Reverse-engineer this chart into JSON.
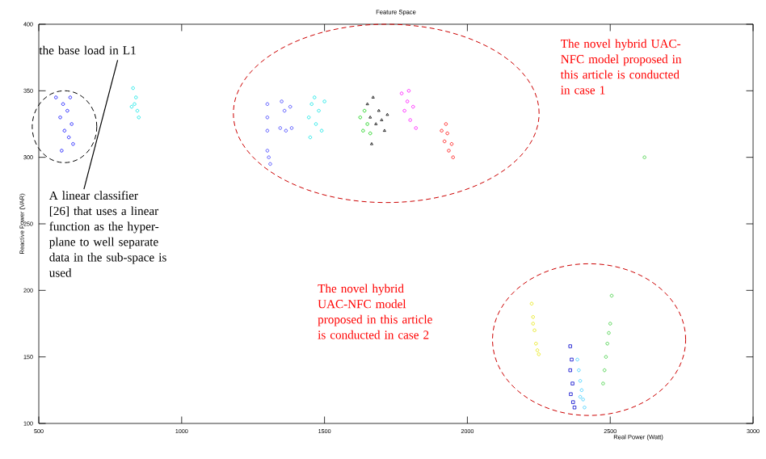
{
  "chart_data": {
    "type": "scatter",
    "title": "Feature Space",
    "xlabel": "Real Power (Watt)",
    "ylabel": "Reactive Power (VAR)",
    "xlim": [
      500,
      3000
    ],
    "ylim": [
      100,
      400
    ],
    "xticks": [
      500,
      1000,
      1500,
      2000,
      2500,
      3000
    ],
    "yticks": [
      100,
      150,
      200,
      250,
      300,
      350,
      400
    ],
    "annotations": [
      "the base load in L1",
      "A linear classifier [26] that uses a linear function as the hyper-plane to well separate data in the sub-space is used",
      "The novel hybrid UAC-NFC model proposed in this article is conducted in case 1",
      "The novel hybrid UAC-NFC model proposed in this article is conducted in case 2"
    ],
    "series": [
      {
        "color": "#0000ff",
        "marker": "circle",
        "x": [
          560,
          575,
          585,
          590,
          600,
          605,
          615,
          620,
          580,
          610
        ],
        "values": [
          345,
          330,
          340,
          320,
          335,
          315,
          325,
          310,
          305,
          345
        ]
      },
      {
        "color": "#00e5e5",
        "marker": "circle",
        "x": [
          830,
          835,
          840,
          845,
          850,
          825
        ],
        "values": [
          352,
          340,
          345,
          335,
          330,
          338
        ]
      },
      {
        "color": "#3333ff",
        "marker": "circle",
        "x": [
          1300,
          1300,
          1300,
          1305,
          1300,
          1310,
          1350,
          1360,
          1380,
          1345,
          1365,
          1385
        ],
        "values": [
          340,
          330,
          320,
          300,
          305,
          295,
          342,
          335,
          338,
          322,
          320,
          322
        ]
      },
      {
        "color": "#00e5e5",
        "marker": "circle",
        "x": [
          1445,
          1455,
          1465,
          1470,
          1480,
          1450,
          1490,
          1500
        ],
        "values": [
          330,
          340,
          345,
          325,
          335,
          315,
          320,
          342
        ]
      },
      {
        "color": "#00cc00",
        "marker": "circle",
        "x": [
          1625,
          1635,
          1640,
          1650,
          1660
        ],
        "values": [
          330,
          320,
          335,
          325,
          318
        ]
      },
      {
        "color": "#000000",
        "marker": "triangle",
        "x": [
          1650,
          1660,
          1670,
          1680,
          1690,
          1700,
          1720,
          1665,
          1710
        ],
        "values": [
          340,
          330,
          345,
          325,
          335,
          328,
          332,
          310,
          320
        ]
      },
      {
        "color": "#ff00ff",
        "marker": "circle",
        "x": [
          1770,
          1780,
          1790,
          1800,
          1810,
          1795,
          1820
        ],
        "values": [
          348,
          335,
          342,
          328,
          338,
          350,
          322
        ]
      },
      {
        "color": "#ff0000",
        "marker": "circle",
        "x": [
          1910,
          1920,
          1930,
          1935,
          1945,
          1950,
          1925
        ],
        "values": [
          320,
          312,
          318,
          305,
          310,
          300,
          325
        ]
      },
      {
        "color": "#e5e500",
        "marker": "circle",
        "x": [
          2225,
          2230,
          2235,
          2240,
          2245,
          2230,
          2250
        ],
        "values": [
          190,
          180,
          170,
          160,
          155,
          175,
          152
        ]
      },
      {
        "color": "#0000cc",
        "marker": "square",
        "x": [
          2360,
          2365,
          2360,
          2368,
          2362,
          2370,
          2375
        ],
        "values": [
          158,
          148,
          140,
          130,
          122,
          116,
          112
        ]
      },
      {
        "color": "#33ccff",
        "marker": "circle",
        "x": [
          2385,
          2390,
          2395,
          2400,
          2405,
          2410,
          2395
        ],
        "values": [
          148,
          140,
          132,
          125,
          118,
          112,
          120
        ]
      },
      {
        "color": "#33cc33",
        "marker": "circle",
        "x": [
          2620,
          2505,
          2475,
          2480,
          2485,
          2490,
          2495,
          2500
        ],
        "values": [
          300,
          196,
          130,
          140,
          150,
          160,
          168,
          175
        ]
      }
    ]
  }
}
